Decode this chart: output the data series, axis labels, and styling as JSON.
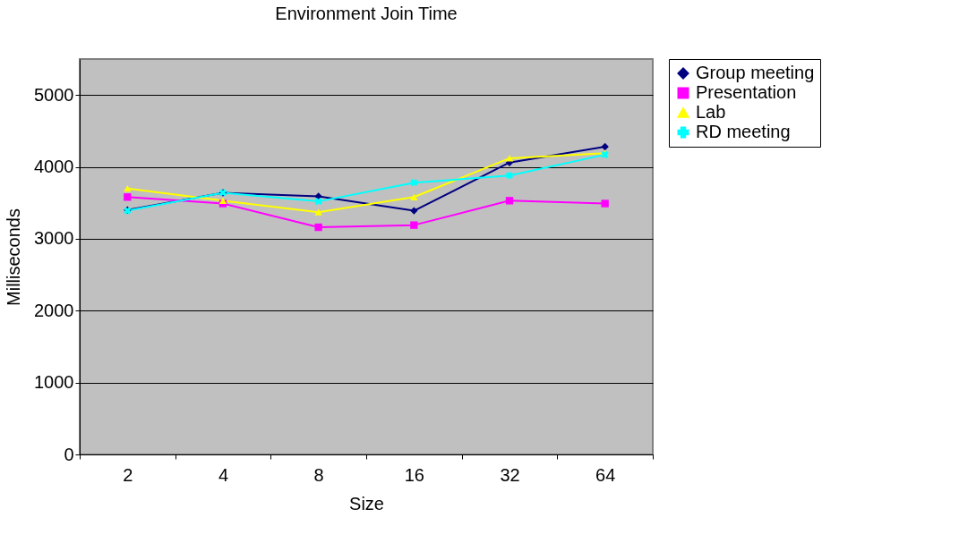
{
  "chart_data": {
    "type": "line",
    "title": "Environment Join Time",
    "xlabel": "Size",
    "ylabel": "Milliseconds",
    "categories": [
      "2",
      "4",
      "8",
      "16",
      "32",
      "64"
    ],
    "series": [
      {
        "name": "Group meeting",
        "color": "#000080",
        "marker": "diamond",
        "values": [
          3400,
          3640,
          3590,
          3390,
          4060,
          4280
        ]
      },
      {
        "name": "Presentation",
        "color": "#ff00ff",
        "marker": "square",
        "values": [
          3580,
          3490,
          3160,
          3190,
          3530,
          3490
        ]
      },
      {
        "name": "Lab",
        "color": "#ffff00",
        "marker": "triangle",
        "values": [
          3700,
          3530,
          3370,
          3580,
          4120,
          4190
        ]
      },
      {
        "name": "RD meeting",
        "color": "#00ffff",
        "marker": "cross",
        "values": [
          3390,
          3640,
          3520,
          3780,
          3880,
          4170
        ]
      }
    ],
    "ylim": [
      0,
      5500
    ],
    "yticks": [
      0,
      1000,
      2000,
      3000,
      4000,
      5000
    ],
    "grid": "y",
    "legend": "right"
  }
}
